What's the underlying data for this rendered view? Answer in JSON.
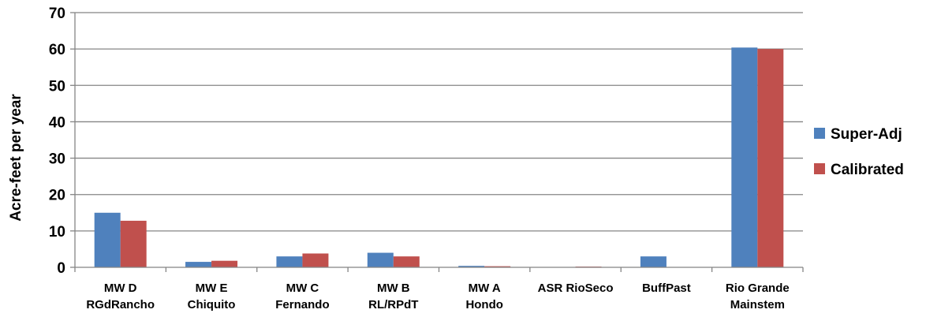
{
  "chart_data": {
    "type": "bar",
    "title": "",
    "xlabel": "",
    "ylabel": "Acre-feet per year",
    "ylim": [
      0,
      70
    ],
    "yticks": [
      0,
      10,
      20,
      30,
      40,
      50,
      60,
      70
    ],
    "grid": true,
    "legend_position": "right",
    "categories": [
      [
        "MW D",
        "RGdRancho"
      ],
      [
        "MW E",
        "Chiquito"
      ],
      [
        "MW C",
        "Fernando"
      ],
      [
        "MW B",
        "RL/RPdT"
      ],
      [
        "MW A",
        "Hondo"
      ],
      [
        "ASR  RioSeco"
      ],
      [
        "BuffPast"
      ],
      [
        "Rio Grande",
        "Mainstem"
      ]
    ],
    "series": [
      {
        "name": "Super-Adj",
        "color": "#4F81BD",
        "values": [
          15.0,
          1.5,
          3.0,
          4.0,
          0.4,
          0.0,
          3.0,
          60.4
        ]
      },
      {
        "name": "Calibrated",
        "color": "#C0504D",
        "values": [
          12.8,
          1.8,
          3.8,
          3.0,
          0.3,
          0.2,
          0.0,
          60.0
        ]
      }
    ]
  }
}
